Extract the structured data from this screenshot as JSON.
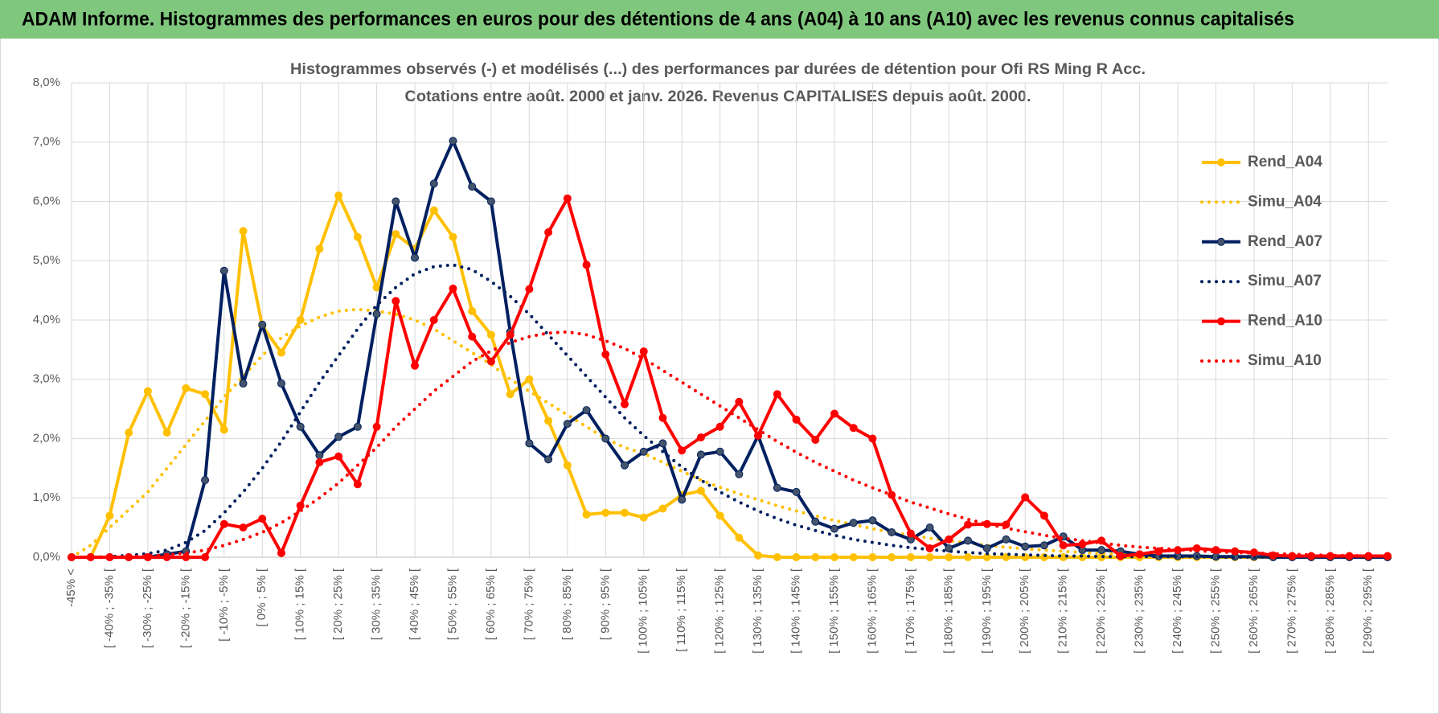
{
  "header": {
    "title": "ADAM Informe. Histogrammes des performances en euros pour des détentions de 4 ans (A04) à 10 ans (A10) avec les revenus connus capitalisés"
  },
  "chart_data": {
    "type": "line",
    "title": "Histogrammes observés (-) et modélisés (...) des performances par durées de détention pour Ofi RS Ming R Acc.",
    "subtitle": "Cotations entre août. 2000 et janv. 2026. Revenus CAPITALISES depuis août. 2000.",
    "categories": [
      "-45% <",
      null,
      "[ -40% ; -35% [",
      null,
      "[ -30% ; -25% [",
      null,
      "[ -20% ; -15% [",
      null,
      "[ -10% ; -5% [",
      null,
      "[ 0% ; 5% [",
      null,
      "[ 10% ; 15% [",
      null,
      "[ 20% ; 25% [",
      null,
      "[ 30% ; 35% [",
      null,
      "[ 40% ; 45% [",
      null,
      "[ 50% ; 55% [",
      null,
      "[ 60% ; 65% [",
      null,
      "[ 70% ; 75% [",
      null,
      "[ 80% ; 85% [",
      null,
      "[ 90% ; 95% [",
      null,
      "[ 100% ; 105% [",
      null,
      "[ 110% ; 115% [",
      null,
      "[ 120% ; 125% [",
      null,
      "[ 130% ; 135% [",
      null,
      "[ 140% ; 145% [",
      null,
      "[ 150% ; 155% [",
      null,
      "[ 160% ; 165% [",
      null,
      "[ 170% ; 175% [",
      null,
      "[ 180% ; 185% [",
      null,
      "[ 190% ; 195% [",
      null,
      "[ 200% ; 205% [",
      null,
      "[ 210% ; 215% [",
      null,
      "[ 220% ; 225% [",
      null,
      "[ 230% ; 235% [",
      null,
      "[ 240% ; 245% [",
      null,
      "[ 250% ; 255% [",
      null,
      "[ 260% ; 265% [",
      null,
      "[ 270% ; 275% [",
      null,
      "[ 280% ; 285% [",
      null,
      "[ 290% ; 295% [",
      null
    ],
    "series": [
      {
        "name": "Rend_A04",
        "color": "#ffc000",
        "style": "solid",
        "markers": true,
        "values": [
          0,
          0,
          0.7,
          2.1,
          2.8,
          2.1,
          2.85,
          2.75,
          2.15,
          5.5,
          3.9,
          3.45,
          4.0,
          5.2,
          6.1,
          5.4,
          4.55,
          5.45,
          5.2,
          5.85,
          5.4,
          4.15,
          3.75,
          2.75,
          3.0,
          2.3,
          1.55,
          0.72,
          0.75,
          0.75,
          0.67,
          0.82,
          1.05,
          1.12,
          0.7,
          0.33,
          0.03,
          0,
          0,
          0,
          0,
          0,
          0,
          0,
          0,
          0,
          0,
          0,
          0,
          0,
          0,
          0,
          0,
          0,
          0,
          0,
          0,
          0,
          0,
          0,
          0,
          0,
          0,
          0,
          0,
          0,
          0,
          0,
          0,
          0
        ]
      },
      {
        "name": "Simu_A04",
        "color": "#ffc000",
        "style": "dotted",
        "markers": false,
        "values": [
          0,
          0.2,
          0.5,
          0.8,
          1.1,
          1.5,
          1.9,
          2.3,
          2.7,
          3.05,
          3.4,
          3.7,
          3.9,
          4.05,
          4.15,
          4.18,
          4.15,
          4.1,
          4.0,
          3.85,
          3.65,
          3.45,
          3.25,
          3.0,
          2.8,
          2.6,
          2.4,
          2.2,
          2.0,
          1.85,
          1.75,
          1.6,
          1.45,
          1.3,
          1.18,
          1.07,
          0.97,
          0.87,
          0.78,
          0.7,
          0.62,
          0.55,
          0.48,
          0.42,
          0.37,
          0.32,
          0.28,
          0.24,
          0.2,
          0.17,
          0.14,
          0.12,
          0.1,
          0.08,
          0.06,
          0.05,
          0.04,
          0.03,
          0.02,
          0.02,
          0.01,
          0.01,
          0.01,
          0.01,
          0.01,
          0,
          0,
          0,
          0,
          0
        ]
      },
      {
        "name": "Rend_A07",
        "color": "#002060",
        "style": "solid",
        "markers": true,
        "values": [
          0,
          0,
          0,
          0,
          0,
          0.05,
          0.1,
          1.3,
          4.83,
          2.93,
          3.92,
          2.93,
          2.2,
          1.72,
          2.03,
          2.2,
          4.1,
          6.0,
          5.05,
          6.3,
          7.02,
          6.25,
          6.0,
          3.8,
          1.92,
          1.65,
          2.25,
          2.48,
          2.0,
          1.55,
          1.78,
          1.92,
          0.97,
          1.73,
          1.78,
          1.4,
          2.05,
          1.17,
          1.1,
          0.6,
          0.48,
          0.58,
          0.62,
          0.42,
          0.3,
          0.5,
          0.15,
          0.28,
          0.15,
          0.3,
          0.18,
          0.2,
          0.35,
          0.12,
          0.12,
          0.1,
          0.05,
          0.02,
          0.02,
          0.02,
          0.01,
          0.01,
          0.01,
          0,
          0,
          0,
          0,
          0,
          0,
          0
        ]
      },
      {
        "name": "Simu_A07",
        "color": "#002060",
        "style": "dotted",
        "markers": false,
        "values": [
          0,
          0,
          0.01,
          0.03,
          0.06,
          0.12,
          0.25,
          0.45,
          0.75,
          1.1,
          1.5,
          1.95,
          2.45,
          2.95,
          3.4,
          3.85,
          4.25,
          4.55,
          4.78,
          4.9,
          4.93,
          4.85,
          4.65,
          4.4,
          4.1,
          3.75,
          3.4,
          3.05,
          2.7,
          2.35,
          2.05,
          1.78,
          1.52,
          1.3,
          1.1,
          0.93,
          0.78,
          0.65,
          0.54,
          0.45,
          0.37,
          0.3,
          0.25,
          0.2,
          0.16,
          0.13,
          0.1,
          0.08,
          0.06,
          0.05,
          0.04,
          0.03,
          0.02,
          0.02,
          0.01,
          0.01,
          0.01,
          0.01,
          0.01,
          0.01,
          0,
          0,
          0,
          0,
          0,
          0,
          0,
          0,
          0,
          0
        ]
      },
      {
        "name": "Rend_A10",
        "color": "#ff0000",
        "style": "solid",
        "markers": true,
        "values": [
          0,
          0,
          0,
          0,
          0,
          0,
          0,
          0,
          0.56,
          0.5,
          0.65,
          0.07,
          0.87,
          1.6,
          1.7,
          1.23,
          2.2,
          4.32,
          3.23,
          4.0,
          4.53,
          3.72,
          3.3,
          3.75,
          4.52,
          5.48,
          6.05,
          4.93,
          3.42,
          2.58,
          3.47,
          2.35,
          1.8,
          2.02,
          2.2,
          2.62,
          2.05,
          2.75,
          2.32,
          1.98,
          2.42,
          2.18,
          2.0,
          1.05,
          0.4,
          0.15,
          0.3,
          0.55,
          0.56,
          0.55,
          1.01,
          0.7,
          0.2,
          0.22,
          0.28,
          0.02,
          0.05,
          0.1,
          0.12,
          0.15,
          0.12,
          0.1,
          0.08,
          0.03,
          0.02,
          0.02,
          0.02,
          0.02,
          0.02,
          0.02
        ]
      },
      {
        "name": "Simu_A10",
        "color": "#ff0000",
        "style": "dotted",
        "markers": false,
        "values": [
          0,
          0,
          0,
          0.01,
          0.02,
          0.04,
          0.07,
          0.12,
          0.2,
          0.3,
          0.42,
          0.58,
          0.78,
          1.0,
          1.25,
          1.55,
          1.85,
          2.2,
          2.5,
          2.8,
          3.05,
          3.3,
          3.48,
          3.62,
          3.72,
          3.78,
          3.8,
          3.75,
          3.65,
          3.52,
          3.35,
          3.15,
          2.95,
          2.75,
          2.55,
          2.35,
          2.15,
          1.95,
          1.77,
          1.6,
          1.45,
          1.3,
          1.17,
          1.05,
          0.93,
          0.83,
          0.73,
          0.64,
          0.56,
          0.49,
          0.43,
          0.37,
          0.32,
          0.28,
          0.24,
          0.2,
          0.17,
          0.15,
          0.13,
          0.11,
          0.09,
          0.08,
          0.07,
          0.06,
          0.05,
          0.04,
          0.03,
          0.03,
          0.02,
          0.02
        ]
      }
    ],
    "ylim": [
      0,
      8
    ],
    "yticks": [
      {
        "value": 0,
        "label": "0,0%"
      },
      {
        "value": 1,
        "label": "1,0%"
      },
      {
        "value": 2,
        "label": "2,0%"
      },
      {
        "value": 3,
        "label": "3,0%"
      },
      {
        "value": 4,
        "label": "4,0%"
      },
      {
        "value": 5,
        "label": "5,0%"
      },
      {
        "value": 6,
        "label": "6,0%"
      },
      {
        "value": 7,
        "label": "7,0%"
      },
      {
        "value": 8,
        "label": "8,0%"
      }
    ],
    "grid": true,
    "legend": "right"
  }
}
